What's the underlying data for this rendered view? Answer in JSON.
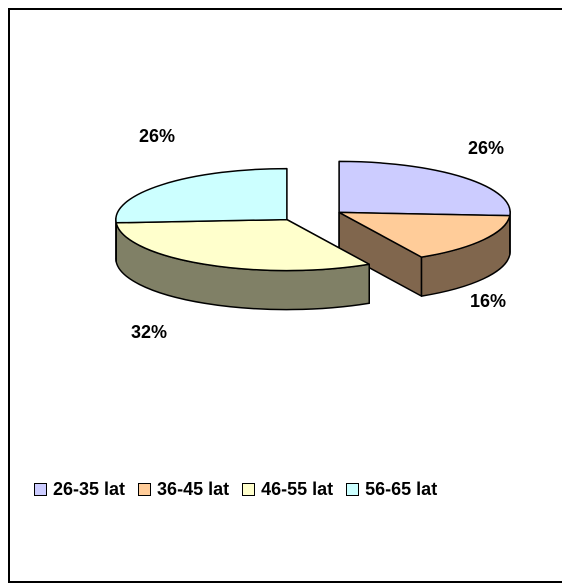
{
  "chart_data": {
    "type": "pie",
    "title": "",
    "categories": [
      "26-35 lat",
      "36-45 lat",
      "46-55 lat",
      "56-65 lat"
    ],
    "values": [
      26,
      16,
      32,
      26
    ],
    "data_labels": [
      "26%",
      "16%",
      "32%",
      "26%"
    ],
    "colors": [
      "#CCCCFF",
      "#FFCC99",
      "#FFFFCC",
      "#CCFFFF"
    ],
    "side_colors": [
      "#666680",
      "#80664D",
      "#808066",
      "#668080"
    ],
    "legend_position": "bottom",
    "exploded": true,
    "three_d": true
  }
}
